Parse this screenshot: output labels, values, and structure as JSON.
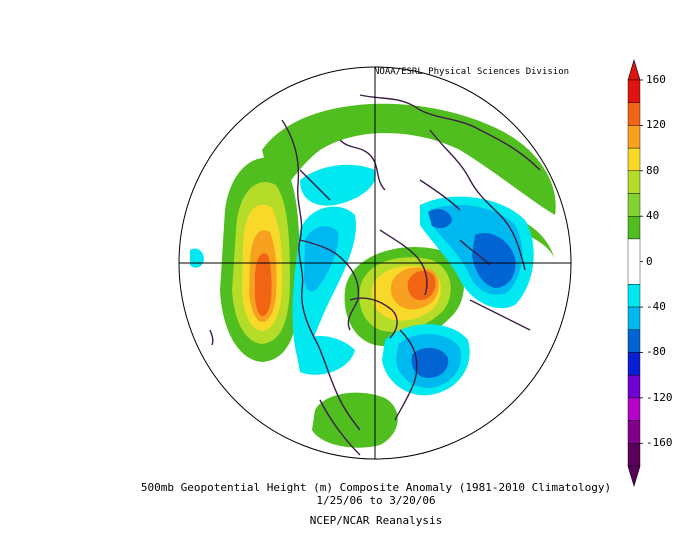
{
  "map": {
    "credit": "NOAA/ESRL Physical Sciences Division",
    "title": "500mb Geopotential Height (m) Composite Anomaly (1981-2010 Climatology)",
    "date_range": "1/25/06   to 3/20/06",
    "source": "NCEP/NCAR Reanalysis",
    "projection": "north-polar-stereographic"
  },
  "colorbar": {
    "orientation": "vertical",
    "placement": "right",
    "ticks": [
      "160",
      "120",
      "80",
      "40",
      "0",
      "-40",
      "-80",
      "-120",
      "-160"
    ],
    "bins": [
      {
        "from": 140,
        "to": 160,
        "color": "#e0140e"
      },
      {
        "from": 120,
        "to": 140,
        "color": "#f06414"
      },
      {
        "from": 100,
        "to": 120,
        "color": "#f8a020"
      },
      {
        "from": 80,
        "to": 100,
        "color": "#f8d828"
      },
      {
        "from": 60,
        "to": 80,
        "color": "#b4dc28"
      },
      {
        "from": 40,
        "to": 60,
        "color": "#82d232"
      },
      {
        "from": 20,
        "to": 40,
        "color": "#50be1e"
      },
      {
        "from": -20,
        "to": 20,
        "color": "#ffffff"
      },
      {
        "from": -40,
        "to": -20,
        "color": "#00e8f0"
      },
      {
        "from": -60,
        "to": -40,
        "color": "#00b8f0"
      },
      {
        "from": -80,
        "to": -60,
        "color": "#0064d2"
      },
      {
        "from": -100,
        "to": -80,
        "color": "#0a1ed2"
      },
      {
        "from": -120,
        "to": -100,
        "color": "#6e00d2"
      },
      {
        "from": -140,
        "to": -120,
        "color": "#b400c8"
      },
      {
        "from": -160,
        "to": -140,
        "color": "#82008c"
      },
      {
        "from": -180,
        "to": -160,
        "color": "#5a005a"
      }
    ]
  },
  "colors": {
    "coastline": "#3c1e46",
    "grid": "#000000",
    "anomaly_max": "#f06414",
    "anomaly_min": "#0064d2"
  }
}
